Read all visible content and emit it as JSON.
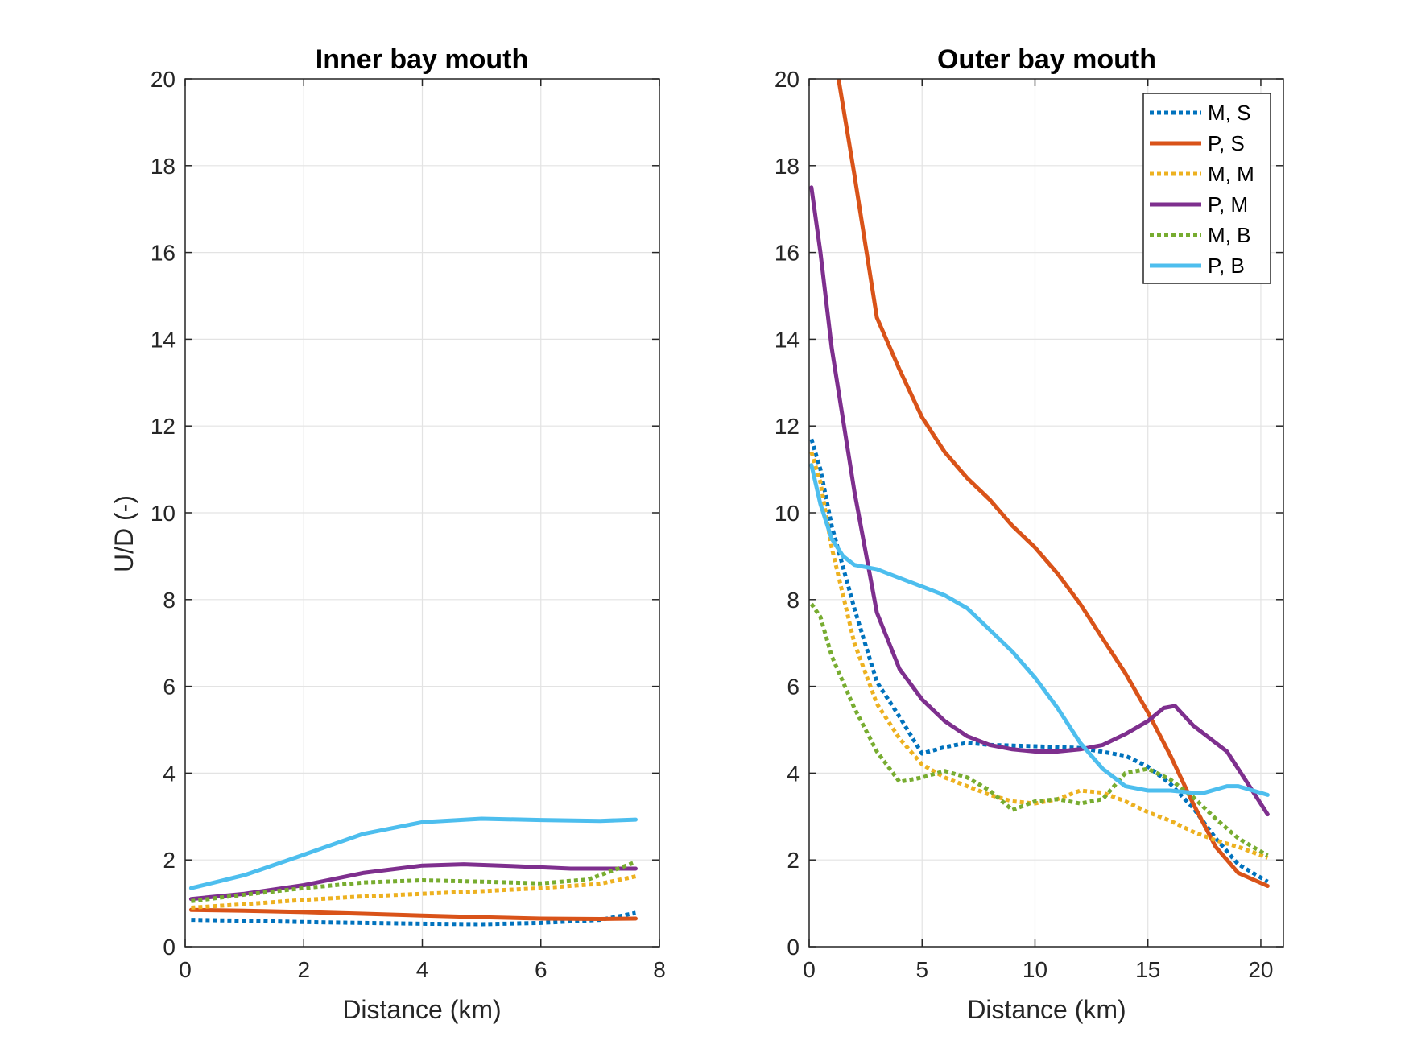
{
  "figure": {
    "colors": {
      "blue": "#0072BD",
      "orange": "#D95319",
      "yellow": "#EDB120",
      "purple": "#7E2F8E",
      "green": "#77AC30",
      "cyan": "#4DBEEE"
    }
  },
  "chart_data": [
    {
      "type": "line",
      "title": "Inner bay mouth",
      "xlabel": "Distance (km)",
      "ylabel": "U/D (-)",
      "xlim": [
        0,
        8
      ],
      "ylim": [
        0,
        20
      ],
      "xticks": [
        "0",
        "2",
        "4",
        "6",
        "8"
      ],
      "yticks": [
        "0",
        "2",
        "4",
        "6",
        "8",
        "10",
        "12",
        "14",
        "16",
        "18",
        "20"
      ],
      "grid": true,
      "legend": null,
      "series": [
        {
          "name": "M, S",
          "color": "#0072BD",
          "style": "dotted",
          "x": [
            0.1,
            1,
            2,
            3,
            4,
            5,
            6,
            7,
            7.6
          ],
          "y": [
            0.62,
            0.6,
            0.57,
            0.55,
            0.53,
            0.52,
            0.55,
            0.62,
            0.78
          ]
        },
        {
          "name": "P, S",
          "color": "#D95319",
          "style": "solid",
          "x": [
            0.1,
            1,
            2,
            3,
            4,
            5,
            6,
            7,
            7.6
          ],
          "y": [
            0.85,
            0.83,
            0.8,
            0.76,
            0.72,
            0.68,
            0.65,
            0.64,
            0.65
          ]
        },
        {
          "name": "M, M",
          "color": "#EDB120",
          "style": "dotted",
          "x": [
            0.1,
            1,
            2,
            3,
            4,
            5,
            6,
            7,
            7.6
          ],
          "y": [
            0.9,
            0.98,
            1.08,
            1.16,
            1.22,
            1.28,
            1.35,
            1.45,
            1.62
          ]
        },
        {
          "name": "P, M",
          "color": "#7E2F8E",
          "style": "solid",
          "x": [
            0.1,
            1,
            2,
            3,
            4,
            4.7,
            5.5,
            6.5,
            7.6
          ],
          "y": [
            1.1,
            1.22,
            1.42,
            1.7,
            1.87,
            1.9,
            1.86,
            1.8,
            1.8
          ]
        },
        {
          "name": "M, B",
          "color": "#77AC30",
          "style": "dotted",
          "x": [
            0.1,
            1,
            2,
            3,
            4,
            5,
            6,
            6.8,
            7.6
          ],
          "y": [
            1.05,
            1.2,
            1.35,
            1.48,
            1.53,
            1.5,
            1.46,
            1.55,
            1.95
          ]
        },
        {
          "name": "P, B",
          "color": "#4DBEEE",
          "style": "solid",
          "x": [
            0.1,
            1,
            2,
            3,
            4,
            5,
            6,
            7,
            7.6
          ],
          "y": [
            1.35,
            1.65,
            2.12,
            2.6,
            2.87,
            2.95,
            2.92,
            2.9,
            2.93
          ]
        }
      ]
    },
    {
      "type": "line",
      "title": "Outer bay mouth",
      "xlabel": "Distance (km)",
      "ylabel": "",
      "xlim": [
        0,
        21
      ],
      "ylim": [
        0,
        20
      ],
      "xticks": [
        "0",
        "5",
        "10",
        "15",
        "20"
      ],
      "yticks": [
        "0",
        "2",
        "4",
        "6",
        "8",
        "10",
        "12",
        "14",
        "16",
        "18",
        "20"
      ],
      "grid": true,
      "legend": "top-right",
      "series": [
        {
          "name": "M, S",
          "color": "#0072BD",
          "style": "dotted",
          "x": [
            0.1,
            0.5,
            1,
            2,
            3,
            4,
            5,
            6,
            7,
            8,
            10,
            12,
            14,
            15,
            16,
            17,
            18,
            19,
            20.3
          ],
          "y": [
            11.7,
            11.0,
            9.7,
            7.8,
            6.1,
            5.3,
            4.45,
            4.6,
            4.7,
            4.65,
            4.62,
            4.58,
            4.4,
            4.15,
            3.75,
            3.2,
            2.5,
            1.9,
            1.5
          ]
        },
        {
          "name": "P, S",
          "color": "#D95319",
          "style": "solid",
          "x": [
            1.3,
            2,
            3,
            4,
            5,
            6,
            7,
            8,
            9,
            10,
            11,
            12,
            13,
            14,
            15,
            16,
            17,
            18,
            19,
            20.3
          ],
          "y": [
            20,
            17.8,
            14.5,
            13.3,
            12.2,
            11.4,
            10.8,
            10.3,
            9.7,
            9.2,
            8.6,
            7.9,
            7.1,
            6.3,
            5.4,
            4.4,
            3.3,
            2.3,
            1.7,
            1.4
          ]
        },
        {
          "name": "M, M",
          "color": "#EDB120",
          "style": "dotted",
          "x": [
            0.1,
            0.5,
            1,
            2,
            3,
            4,
            5,
            6,
            7,
            8,
            9,
            10,
            11,
            12,
            13,
            14,
            15,
            16,
            17,
            18,
            19,
            20.3
          ],
          "y": [
            11.4,
            10.7,
            9.2,
            7.0,
            5.6,
            4.8,
            4.2,
            3.9,
            3.7,
            3.5,
            3.35,
            3.3,
            3.4,
            3.6,
            3.55,
            3.35,
            3.1,
            2.9,
            2.65,
            2.45,
            2.3,
            2.05
          ]
        },
        {
          "name": "P, M",
          "color": "#7E2F8E",
          "style": "solid",
          "x": [
            0.1,
            0.5,
            1,
            2,
            3,
            4,
            5,
            6,
            7,
            8,
            9,
            10,
            11,
            12,
            13,
            14,
            15,
            15.7,
            16.2,
            17,
            17.5,
            18.5,
            19.5,
            20.3
          ],
          "y": [
            17.5,
            16.0,
            13.8,
            10.5,
            7.7,
            6.4,
            5.7,
            5.2,
            4.85,
            4.65,
            4.55,
            4.5,
            4.5,
            4.55,
            4.65,
            4.9,
            5.2,
            5.5,
            5.55,
            5.1,
            4.9,
            4.5,
            3.7,
            3.05
          ]
        },
        {
          "name": "M, B",
          "color": "#77AC30",
          "style": "dotted",
          "x": [
            0.1,
            0.5,
            1,
            2,
            3,
            4,
            5,
            6,
            7,
            8,
            9,
            10,
            11,
            12,
            13,
            14,
            15,
            16,
            17,
            18,
            19,
            20.3
          ],
          "y": [
            7.9,
            7.6,
            6.7,
            5.5,
            4.5,
            3.8,
            3.9,
            4.05,
            3.9,
            3.6,
            3.15,
            3.35,
            3.4,
            3.3,
            3.4,
            4.0,
            4.1,
            3.85,
            3.45,
            2.95,
            2.5,
            2.1
          ]
        },
        {
          "name": "P, B",
          "color": "#4DBEEE",
          "style": "solid",
          "x": [
            0.1,
            0.5,
            1,
            1.5,
            2,
            3,
            4,
            5,
            6,
            7,
            8,
            9,
            10,
            11,
            12,
            13,
            14,
            15,
            16,
            17,
            17.5,
            18.5,
            19,
            20.3
          ],
          "y": [
            11.1,
            10.2,
            9.4,
            9.0,
            8.8,
            8.7,
            8.5,
            8.3,
            8.1,
            7.8,
            7.3,
            6.8,
            6.2,
            5.5,
            4.7,
            4.1,
            3.7,
            3.6,
            3.6,
            3.55,
            3.55,
            3.7,
            3.7,
            3.5
          ]
        }
      ]
    }
  ]
}
